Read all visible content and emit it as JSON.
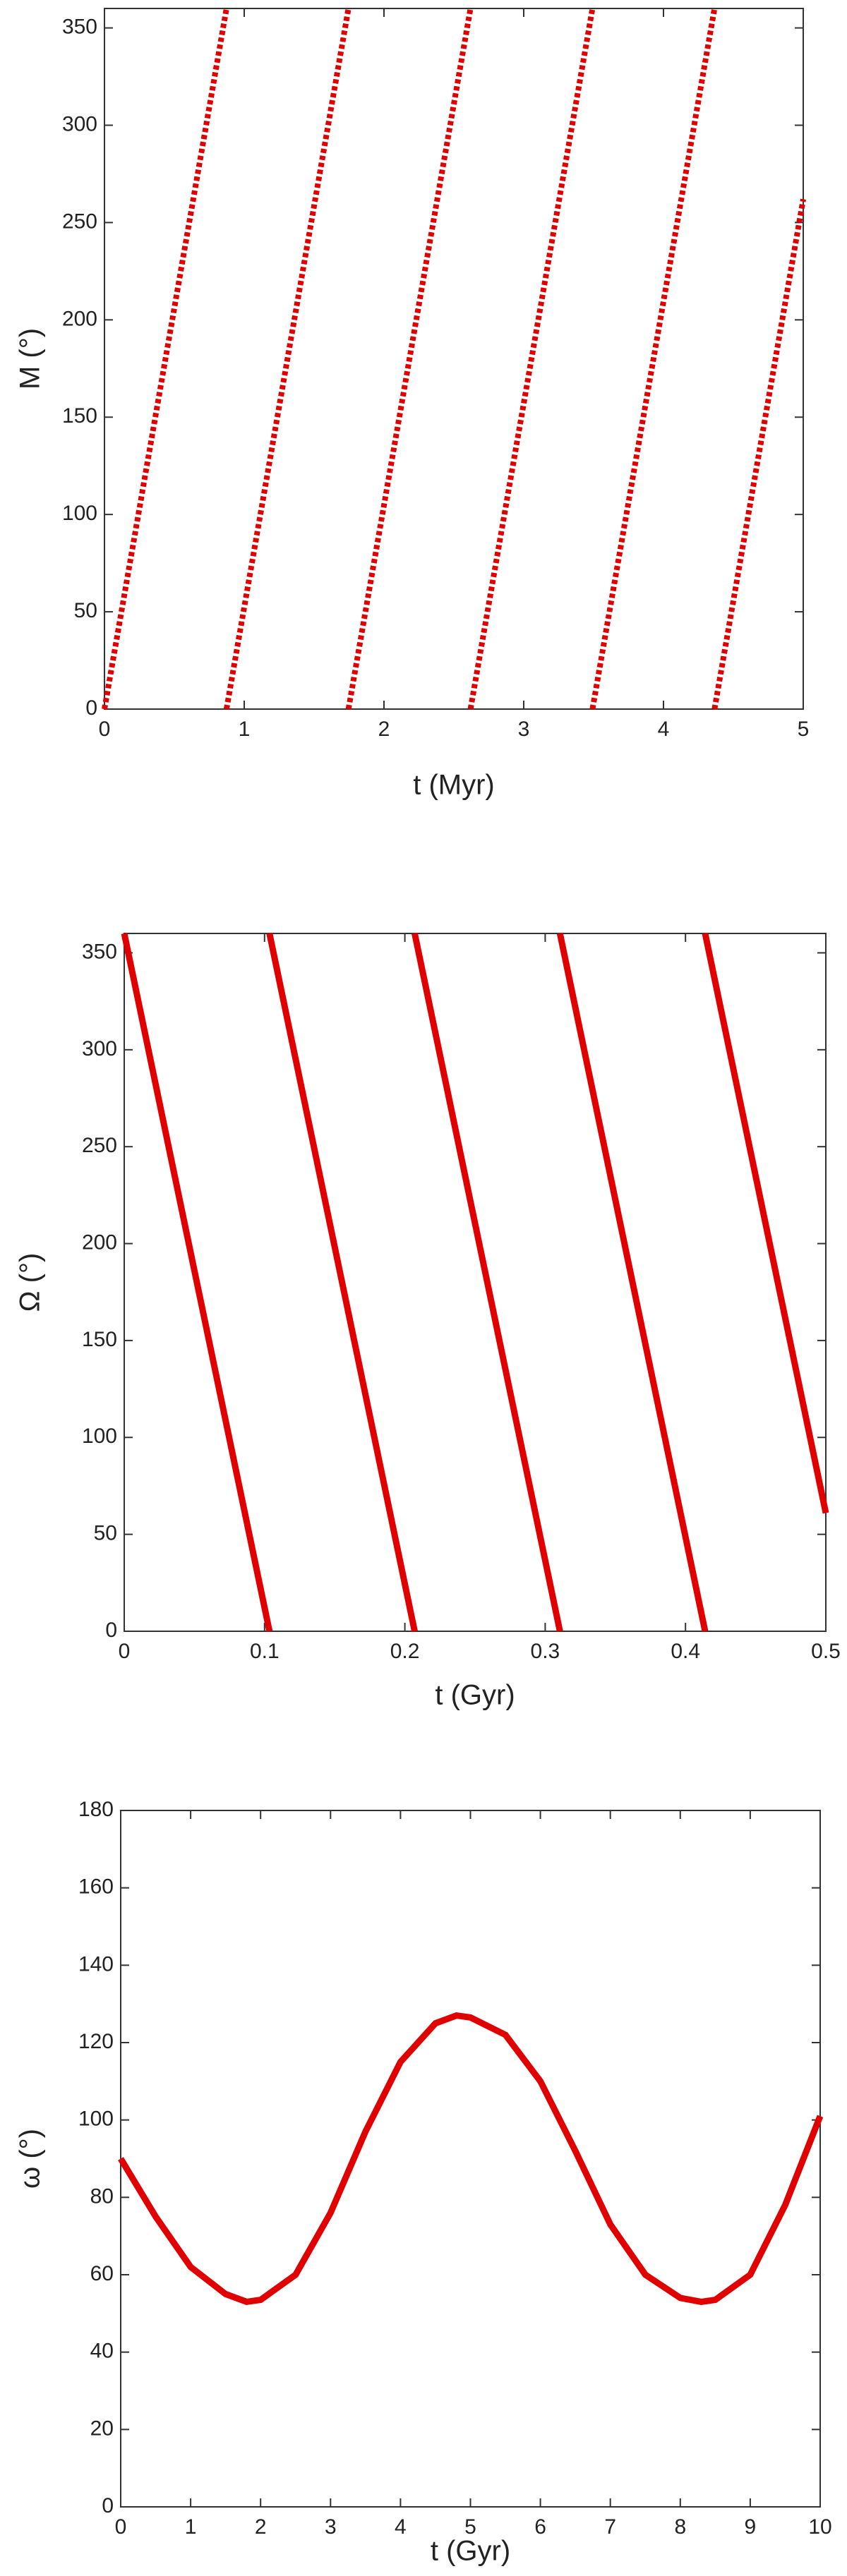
{
  "chart_data": [
    {
      "type": "line",
      "line_style": "dotted",
      "x_label": "t (Myr)",
      "y_label": "M (°)",
      "x": [
        0,
        0.873,
        0.873,
        0.873,
        1.746,
        1.746,
        1.746,
        2.619,
        2.619,
        2.619,
        3.492,
        3.492,
        3.492,
        4.365,
        4.365,
        4.365,
        5
      ],
      "series": [
        {
          "color": "#e00000",
          "values": [
            0,
            360,
            null,
            0,
            360,
            null,
            0,
            360,
            null,
            0,
            360,
            null,
            0,
            360,
            null,
            0,
            262
          ]
        }
      ],
      "xlim": [
        0,
        5
      ],
      "ylim": [
        0,
        360
      ],
      "xticks": [
        0,
        1,
        2,
        3,
        4,
        5
      ],
      "yticks": [
        0,
        50,
        100,
        150,
        200,
        250,
        300,
        350
      ]
    },
    {
      "type": "line",
      "line_style": "solid",
      "x_label": "t (Gyr)",
      "y_label": "Ω (°)",
      "x": [
        0,
        0.1035,
        0.1035,
        0.1035,
        0.207,
        0.207,
        0.207,
        0.3105,
        0.3105,
        0.3105,
        0.414,
        0.414,
        0.414,
        0.5
      ],
      "series": [
        {
          "color": "#e00000",
          "values": [
            360,
            0,
            null,
            360,
            0,
            null,
            360,
            0,
            null,
            360,
            0,
            null,
            360,
            61
          ]
        }
      ],
      "xlim": [
        0,
        0.5
      ],
      "ylim": [
        0,
        360
      ],
      "xticks": [
        0,
        0.1,
        0.2,
        0.3,
        0.4,
        0.5
      ],
      "yticks": [
        0,
        50,
        100,
        150,
        200,
        250,
        300,
        350
      ]
    },
    {
      "type": "line",
      "line_style": "solid",
      "x_label": "t (Gyr)",
      "y_label": "ω (°)",
      "x": [
        0,
        0.5,
        1,
        1.5,
        1.8,
        2,
        2.5,
        3,
        3.5,
        4,
        4.5,
        4.8,
        5,
        5.5,
        6,
        6.5,
        7,
        7.5,
        8,
        8.3,
        8.5,
        9,
        9.5,
        10
      ],
      "series": [
        {
          "color": "#e00000",
          "values": [
            90,
            75,
            62,
            55,
            53,
            53.5,
            60,
            76,
            97,
            115,
            125,
            127,
            126.5,
            122,
            110,
            92,
            73,
            60,
            54,
            53,
            53.5,
            60,
            78,
            101
          ]
        }
      ],
      "xlim": [
        0,
        10
      ],
      "ylim": [
        0,
        180
      ],
      "xticks": [
        0,
        1,
        2,
        3,
        4,
        5,
        6,
        7,
        8,
        9,
        10
      ],
      "yticks": [
        0,
        20,
        40,
        60,
        80,
        100,
        120,
        140,
        160,
        180
      ]
    }
  ]
}
